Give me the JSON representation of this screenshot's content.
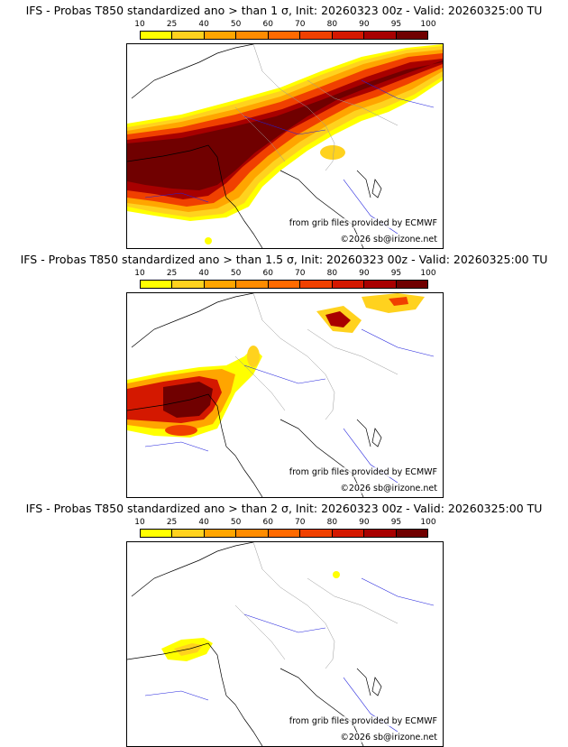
{
  "panels": [
    {
      "title": "IFS - Probas T850  standardized ano > than 1 σ, Init: 20260323 00z - Valid: 20260325:00 TU",
      "threshold": "1 σ",
      "credit_source": "from grib files provided by ECMWF",
      "credit_copyright": "©2026 sb@irizone.net"
    },
    {
      "title": "IFS - Probas T850  standardized ano > than 1.5 σ, Init: 20260323 00z - Valid: 20260325:00 TU",
      "threshold": "1.5 σ",
      "credit_source": "from grib files provided by ECMWF",
      "credit_copyright": "©2026 sb@irizone.net"
    },
    {
      "title": "IFS - Probas T850  standardized ano > than 2 σ, Init: 20260323 00z - Valid: 20260325:00 TU",
      "threshold": "2 σ",
      "credit_source": "from grib files provided by ECMWF",
      "credit_copyright": "©2026 sb@irizone.net"
    }
  ],
  "legend": {
    "ticks": [
      "10",
      "25",
      "40",
      "50",
      "60",
      "70",
      "80",
      "90",
      "95",
      "100"
    ],
    "colors": [
      "#ffff00",
      "#ffd21e",
      "#ffa500",
      "#ff8c00",
      "#ff6a00",
      "#f04000",
      "#d41800",
      "#a80000",
      "#700000"
    ]
  }
}
